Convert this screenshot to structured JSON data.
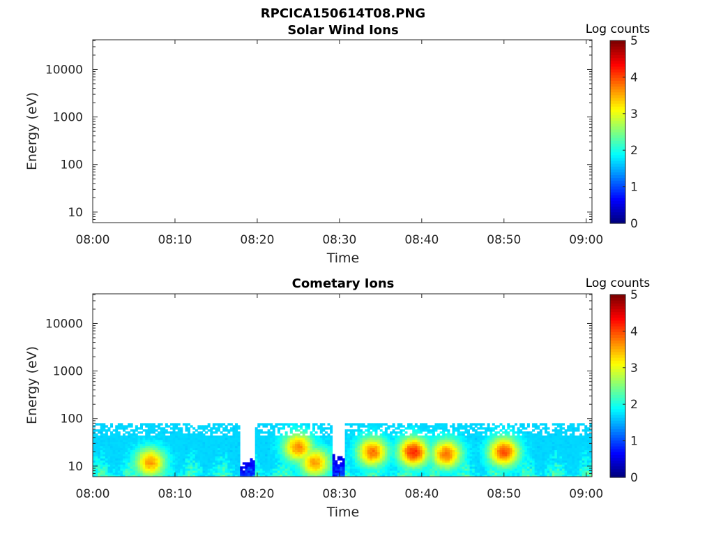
{
  "figure": {
    "file_title": "RPCICA150614T08.PNG"
  },
  "chart_data": [
    {
      "type": "heatmap",
      "title": "Solar Wind Ions",
      "xlabel": "Time",
      "ylabel": "Energy (eV)",
      "x_tick_labels": [
        "08:00",
        "08:10",
        "08:20",
        "08:30",
        "08:40",
        "08:50",
        "09:00"
      ],
      "y_tick_values": [
        10,
        100,
        1000,
        10000
      ],
      "y_tick_labels": [
        "10",
        "100",
        "1000",
        "10000"
      ],
      "y_scale": "log",
      "ylim": [
        6,
        42000
      ],
      "colorbar": {
        "label": "Log counts",
        "range": [
          0,
          5
        ],
        "tick_labels": [
          "0",
          "1",
          "2",
          "3",
          "4",
          "5"
        ],
        "colormap": "jet"
      },
      "data": "empty"
    },
    {
      "type": "heatmap",
      "title": "Cometary Ions",
      "xlabel": "Time",
      "ylabel": "Energy (eV)",
      "x_tick_labels": [
        "08:00",
        "08:10",
        "08:20",
        "08:30",
        "08:40",
        "08:50",
        "09:00"
      ],
      "y_tick_values": [
        10,
        100,
        1000,
        10000
      ],
      "y_tick_labels": [
        "10",
        "100",
        "1000",
        "10000"
      ],
      "y_scale": "log",
      "ylim": [
        6,
        42000
      ],
      "colorbar": {
        "label": "Log counts",
        "range": [
          0,
          5
        ],
        "tick_labels": [
          "0",
          "1",
          "2",
          "3",
          "4",
          "5"
        ],
        "colormap": "jet"
      },
      "energy_range_eV": [
        6,
        80
      ],
      "peak_events": [
        {
          "time": "08:07",
          "energy_eV": 12,
          "log_counts": 3.6
        },
        {
          "time": "08:25",
          "energy_eV": 25,
          "log_counts": 3.7
        },
        {
          "time": "08:27",
          "energy_eV": 12,
          "log_counts": 3.6
        },
        {
          "time": "08:34",
          "energy_eV": 20,
          "log_counts": 3.8
        },
        {
          "time": "08:39",
          "energy_eV": 20,
          "log_counts": 4.2
        },
        {
          "time": "08:43",
          "energy_eV": 18,
          "log_counts": 3.8
        },
        {
          "time": "08:50",
          "energy_eV": 20,
          "log_counts": 4.0
        }
      ]
    }
  ]
}
